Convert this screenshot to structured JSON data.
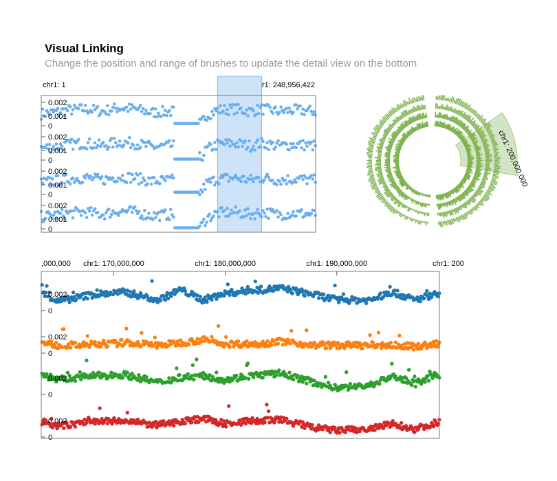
{
  "header": {
    "title": "Visual Linking",
    "subtitle": "Change the position and range of brushes to update the detail view on the bottom"
  },
  "colors": {
    "overview_points": "#6aaeee",
    "brush_fill": "#cfe3f8",
    "brush_stroke": "#8cb5df",
    "circular_bars": "#7fb450",
    "circular_brush": "#cfe2c0",
    "detail_series": [
      "#1f77b4",
      "#ff7f0e",
      "#2ca02c",
      "#d62728"
    ]
  },
  "chart_data": [
    {
      "type": "scatter",
      "view": "overview",
      "x_unit": "genomic position (chr1)",
      "x_start_label": "chr1: 1",
      "x_end_label": "chr1: 248,956,422",
      "xlim": [
        1,
        248956422
      ],
      "tracks": 4,
      "ylim": [
        0,
        0.0025
      ],
      "y_ticks": [
        "0.002",
        "0.001",
        "0"
      ],
      "brush": {
        "x_start": 160000000,
        "x_end": 200000000
      }
    },
    {
      "type": "bar",
      "view": "circular",
      "rings": 4,
      "brush_label": "chr1: 200,000,000",
      "brush": {
        "x_start": 160000000,
        "x_end": 200000000
      }
    },
    {
      "type": "scatter",
      "view": "detail",
      "xlim": [
        160000000,
        200000000
      ],
      "x_tick_labels": [
        ",000,000",
        "chr1: 170,000,000",
        "chr1: 180,000,000",
        "chr1: 190,000,000",
        "chr1: 200"
      ],
      "x_ticks": [
        160000000,
        170000000,
        180000000,
        190000000,
        200000000
      ],
      "ylim": [
        0,
        0.0025
      ],
      "y_ticks": [
        "0.002",
        "0"
      ],
      "series": [
        {
          "color": "#1f77b4",
          "profile": [
            [
              160,
              1.6
            ],
            [
              163,
              1.6
            ],
            [
              165,
              0.7
            ],
            [
              168,
              1.2
            ],
            [
              171,
              1.4
            ],
            [
              174,
              0.8
            ],
            [
              176,
              1.6
            ],
            [
              178,
              0.8
            ],
            [
              180,
              1.3
            ],
            [
              182,
              1.5
            ],
            [
              185,
              1.7
            ],
            [
              188,
              1.2
            ],
            [
              190,
              0.8
            ],
            [
              193,
              0.8
            ],
            [
              195,
              1.4
            ],
            [
              197,
              0.8
            ],
            [
              199,
              1.3
            ],
            [
              200,
              1.4
            ]
          ]
        },
        {
          "color": "#ff7f0e",
          "profile": [
            [
              160,
              0.6
            ],
            [
              163,
              0.8
            ],
            [
              165,
              0.6
            ],
            [
              168,
              0.6
            ],
            [
              171,
              0.8
            ],
            [
              174,
              0.6
            ],
            [
              176,
              0.8
            ],
            [
              178,
              1.0
            ],
            [
              180,
              0.7
            ],
            [
              183,
              0.7
            ],
            [
              185,
              0.9
            ],
            [
              188,
              0.6
            ],
            [
              190,
              0.6
            ],
            [
              193,
              0.6
            ],
            [
              195,
              0.6
            ],
            [
              197,
              0.5
            ],
            [
              199,
              0.7
            ],
            [
              200,
              0.7
            ]
          ]
        },
        {
          "color": "#2ca02c",
          "profile": [
            [
              160,
              1.6
            ],
            [
              163,
              1.7
            ],
            [
              165,
              1.1
            ],
            [
              168,
              1.4
            ],
            [
              171,
              1.5
            ],
            [
              174,
              0.9
            ],
            [
              176,
              1.3
            ],
            [
              178,
              1.4
            ],
            [
              180,
              1.1
            ],
            [
              182,
              1.4
            ],
            [
              185,
              1.6
            ],
            [
              188,
              0.9
            ],
            [
              190,
              0.5
            ],
            [
              193,
              0.7
            ],
            [
              195,
              1.4
            ],
            [
              197,
              0.8
            ],
            [
              199,
              1.5
            ],
            [
              200,
              1.2
            ]
          ]
        },
        {
          "color": "#d62728",
          "profile": [
            [
              160,
              1.1
            ],
            [
              163,
              1.3
            ],
            [
              165,
              0.8
            ],
            [
              168,
              1.2
            ],
            [
              171,
              1.2
            ],
            [
              174,
              0.9
            ],
            [
              176,
              1.2
            ],
            [
              178,
              1.4
            ],
            [
              180,
              1.0
            ],
            [
              182,
              1.2
            ],
            [
              185,
              1.3
            ],
            [
              188,
              0.7
            ],
            [
              190,
              0.5
            ],
            [
              193,
              0.6
            ],
            [
              195,
              1.0
            ],
            [
              197,
              0.6
            ],
            [
              199,
              1.1
            ],
            [
              200,
              1.0
            ]
          ]
        }
      ]
    }
  ]
}
